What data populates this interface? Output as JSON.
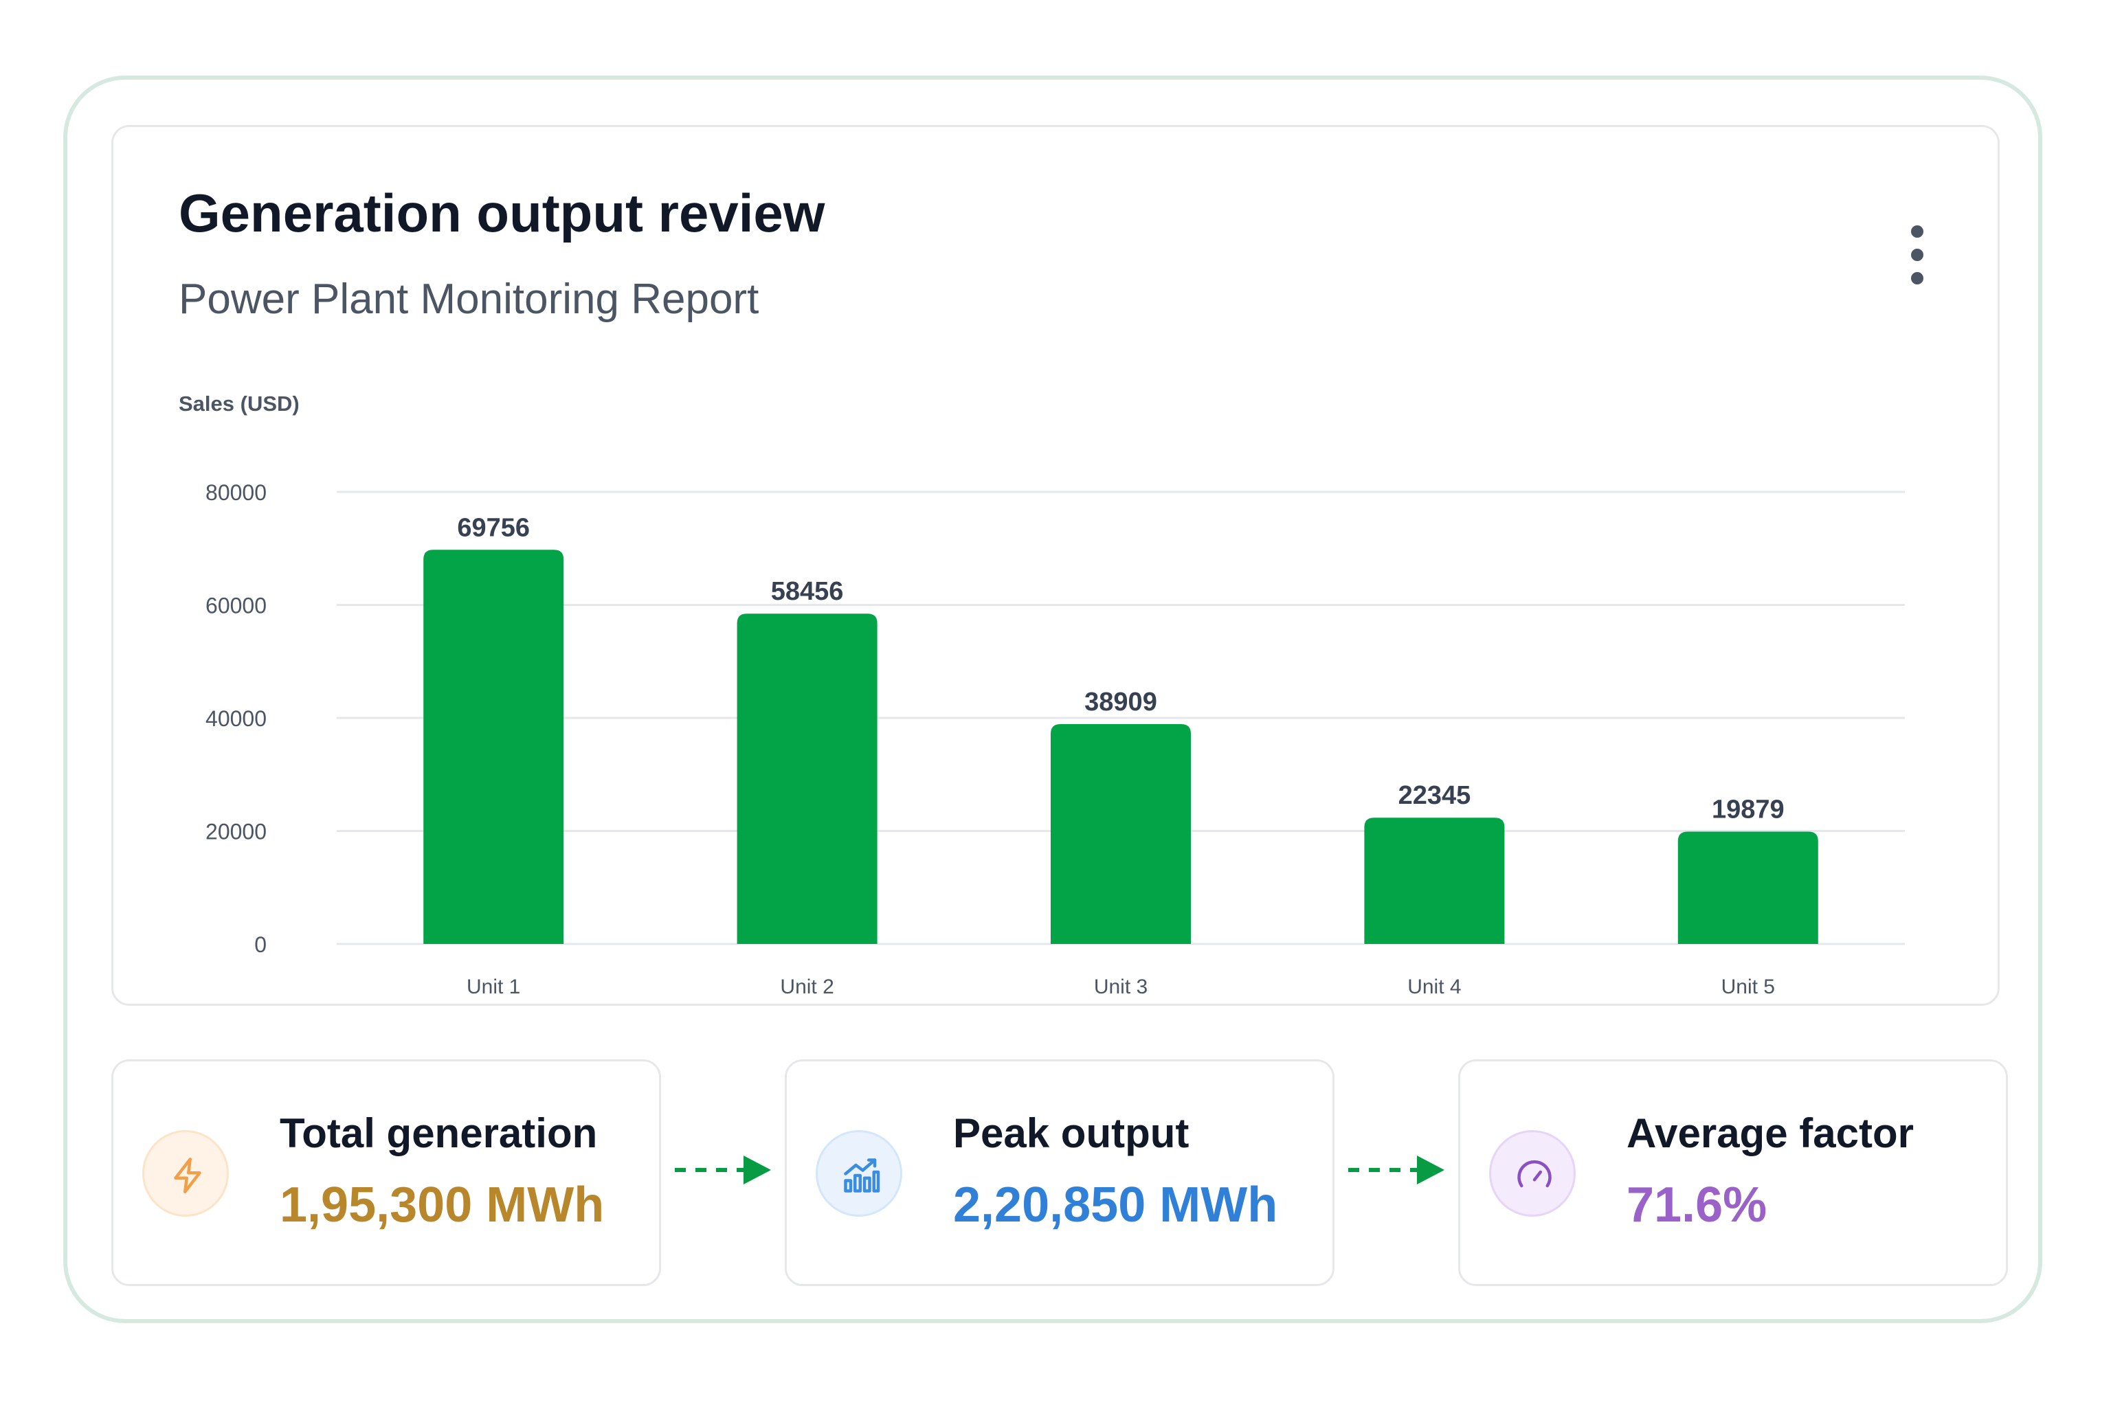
{
  "header": {
    "title": "Generation output review",
    "subtitle": "Power Plant Monitoring Report",
    "menu_icon": "kebab-menu-icon"
  },
  "chart_data": {
    "type": "bar",
    "ylabel": "Sales (USD)",
    "xlabel": "",
    "categories": [
      "Unit 1",
      "Unit 2",
      "Unit 3",
      "Unit 4",
      "Unit 5"
    ],
    "values": [
      69756,
      58456,
      38909,
      22345,
      19879
    ],
    "ylim": [
      0,
      80000
    ],
    "yticks": [
      0,
      20000,
      40000,
      60000,
      80000
    ],
    "grid": true,
    "data_labels": true,
    "bar_color": "#02a447"
  },
  "stats": [
    {
      "label": "Total generation",
      "value": "1,95,300 MWh",
      "icon": "lightning-bolt-icon",
      "accent": "#b8862b",
      "icon_color": "#f0a04b",
      "icon_bg": "#fef3e6",
      "icon_border": "#fde3c7"
    },
    {
      "label": "Peak output",
      "value": "2,20,850 MWh",
      "icon": "bar-chart-trend-icon",
      "accent": "#2f80d6",
      "icon_color": "#3b8de0",
      "icon_bg": "#eaf3fd",
      "icon_border": "#d3e6fa"
    },
    {
      "label": "Average factor",
      "value": "71.6%",
      "icon": "gauge-icon",
      "accent": "#9a62c8",
      "icon_color": "#8b4fc4",
      "icon_bg": "#f4ebfd",
      "icon_border": "#e6d5f8"
    }
  ],
  "flow": {
    "arrow_icon": "dashed-arrow-right-icon",
    "color": "#079b44"
  }
}
